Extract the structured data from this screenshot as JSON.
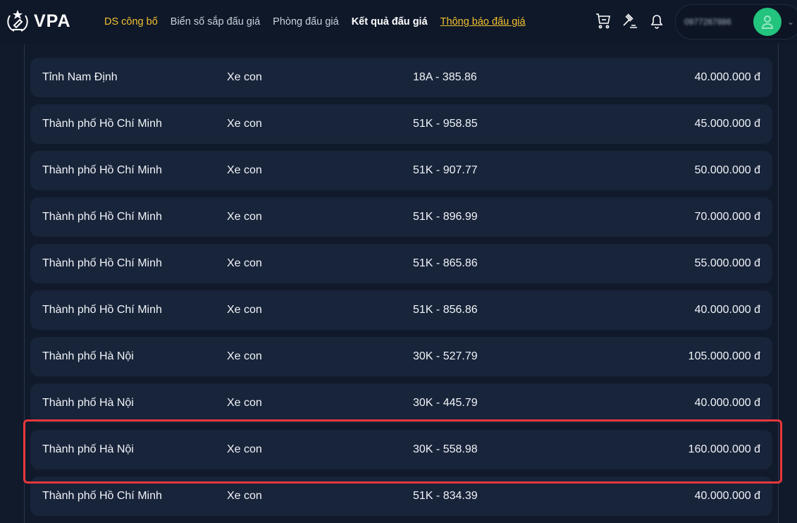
{
  "header": {
    "logo_text": "VPA",
    "nav": [
      {
        "label": "DS công bố",
        "color": "#f2c12e"
      },
      {
        "label": "Biển số sắp đấu giá",
        "color": "#c9d0db"
      },
      {
        "label": "Phòng đấu giá",
        "color": "#c9d0db"
      },
      {
        "label": "Kết quả đấu giá",
        "color": "#ffffff"
      },
      {
        "label": "Thông báo đấu giá",
        "color": "#f2c12e"
      }
    ],
    "icons": [
      "cart-icon",
      "gavel-icon",
      "bell-icon"
    ],
    "user": {
      "phone": "0977287886",
      "avatar_color": "#23c47e"
    }
  },
  "rows": [
    {
      "province": "Tỉnh Nam Định",
      "type": "Xe con",
      "plate": "18A - 385.86",
      "price": "40.000.000 đ"
    },
    {
      "province": "Thành phố Hồ Chí Minh",
      "type": "Xe con",
      "plate": "51K - 958.85",
      "price": "45.000.000 đ"
    },
    {
      "province": "Thành phố Hồ Chí Minh",
      "type": "Xe con",
      "plate": "51K - 907.77",
      "price": "50.000.000 đ"
    },
    {
      "province": "Thành phố Hồ Chí Minh",
      "type": "Xe con",
      "plate": "51K - 896.99",
      "price": "70.000.000 đ"
    },
    {
      "province": "Thành phố Hồ Chí Minh",
      "type": "Xe con",
      "plate": "51K - 865.86",
      "price": "55.000.000 đ"
    },
    {
      "province": "Thành phố Hồ Chí Minh",
      "type": "Xe con",
      "plate": "51K - 856.86",
      "price": "40.000.000 đ"
    },
    {
      "province": "Thành phố Hà Nội",
      "type": "Xe con",
      "plate": "30K - 527.79",
      "price": "105.000.000 đ"
    },
    {
      "province": "Thành phố Hà Nội",
      "type": "Xe con",
      "plate": "30K - 445.79",
      "price": "40.000.000 đ"
    },
    {
      "province": "Thành phố Hà Nội",
      "type": "Xe con",
      "plate": "30K - 558.98",
      "price": "160.000.000 đ",
      "highlighted": true
    },
    {
      "province": "Thành phố Hồ Chí Minh",
      "type": "Xe con",
      "plate": "51K - 834.39",
      "price": "40.000.000 đ"
    }
  ],
  "highlight_color": "#e8383b"
}
